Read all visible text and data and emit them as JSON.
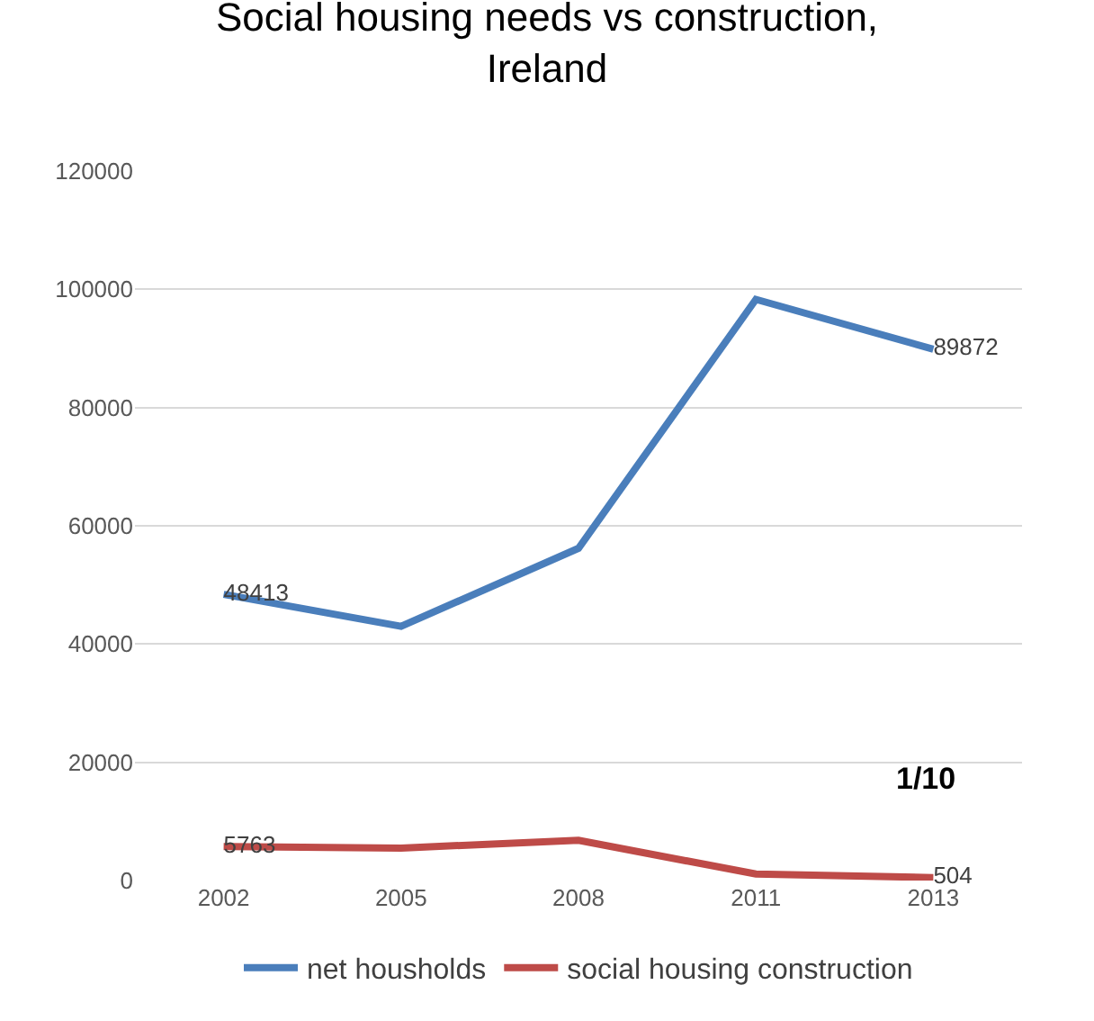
{
  "chart_data": {
    "type": "line",
    "title": "Social housing needs vs construction, Ireland",
    "categories": [
      "2002",
      "2005",
      "2008",
      "2011",
      "2013"
    ],
    "series": [
      {
        "name": "net housholds",
        "color": "#4a7ebb",
        "values": [
          48413,
          43000,
          56200,
          98300,
          89872
        ],
        "value_labels": [
          "48413",
          null,
          null,
          null,
          "89872"
        ]
      },
      {
        "name": "social housing construction",
        "color": "#be4b48",
        "values": [
          5763,
          5500,
          6800,
          1100,
          504
        ],
        "value_labels": [
          "5763",
          null,
          null,
          null,
          "504"
        ]
      }
    ],
    "ylim": [
      0,
      120000
    ],
    "yticks": [
      0,
      20000,
      40000,
      60000,
      80000,
      100000,
      120000
    ],
    "grid": "y",
    "legend": "bottom",
    "marker": "none",
    "line_style": "solid",
    "annotations": [
      "1/10"
    ]
  }
}
